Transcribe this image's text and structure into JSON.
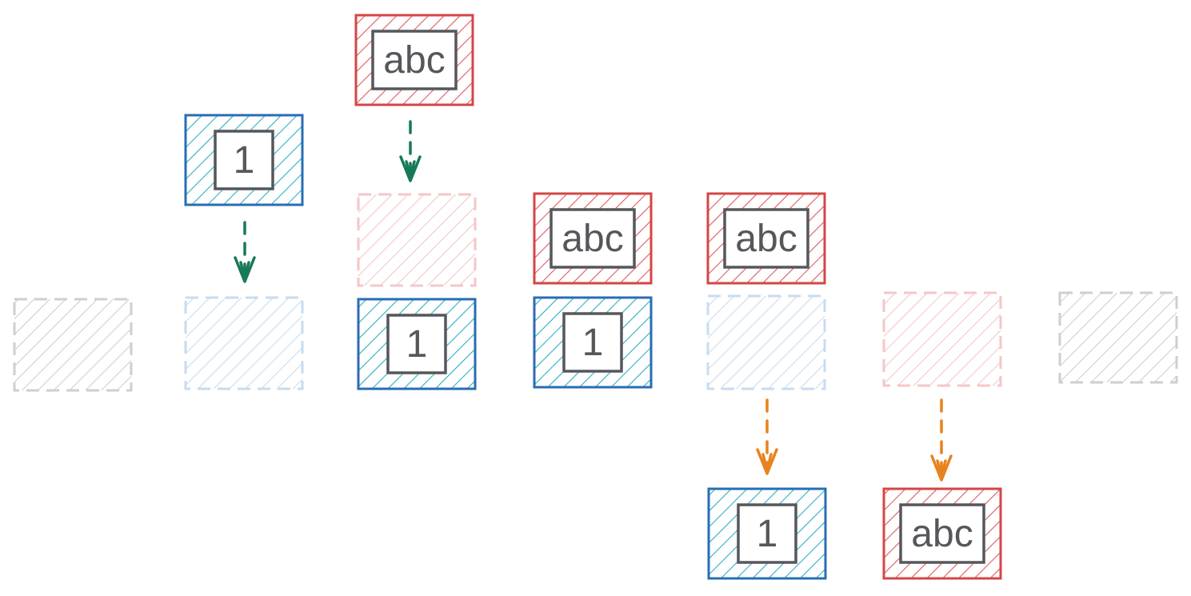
{
  "diagram": {
    "colors": {
      "blue": "#2a6cb3",
      "blue_hatch": "#2cb0c0",
      "red": "#d64545",
      "red_hatch": "#e05a5a",
      "ghost_gray": "#cfcfcf",
      "ghost_blue": "#c7dcef",
      "ghost_red": "#f4c7c7",
      "green_arrow": "#177a57",
      "orange_arrow": "#e8821f",
      "label_text": "#55575b",
      "label_border": "#55575b"
    },
    "blocks": [
      {
        "id": "slot-empty-1",
        "style": "ghost-gray",
        "label": ""
      },
      {
        "id": "int-incoming",
        "style": "blue",
        "label": "1"
      },
      {
        "id": "slot-int-target",
        "style": "ghost-blue",
        "label": ""
      },
      {
        "id": "str-incoming",
        "style": "red",
        "label": "abc"
      },
      {
        "id": "slot-str-target",
        "style": "ghost-red",
        "label": ""
      },
      {
        "id": "int-stacked-a",
        "style": "blue",
        "label": "1"
      },
      {
        "id": "str-stacked-b",
        "style": "red",
        "label": "abc"
      },
      {
        "id": "int-stacked-b",
        "style": "blue",
        "label": "1"
      },
      {
        "id": "str-stacked-c",
        "style": "red",
        "label": "abc"
      },
      {
        "id": "slot-int-vacated",
        "style": "ghost-blue",
        "label": ""
      },
      {
        "id": "slot-str-vacated",
        "style": "ghost-red",
        "label": ""
      },
      {
        "id": "slot-empty-2",
        "style": "ghost-gray",
        "label": ""
      },
      {
        "id": "int-outgoing",
        "style": "blue",
        "label": "1"
      },
      {
        "id": "str-outgoing",
        "style": "red",
        "label": "abc"
      }
    ],
    "arrows": [
      {
        "id": "push-int",
        "color": "green"
      },
      {
        "id": "push-str",
        "color": "green"
      },
      {
        "id": "pop-int",
        "color": "orange"
      },
      {
        "id": "pop-str",
        "color": "orange"
      }
    ]
  }
}
